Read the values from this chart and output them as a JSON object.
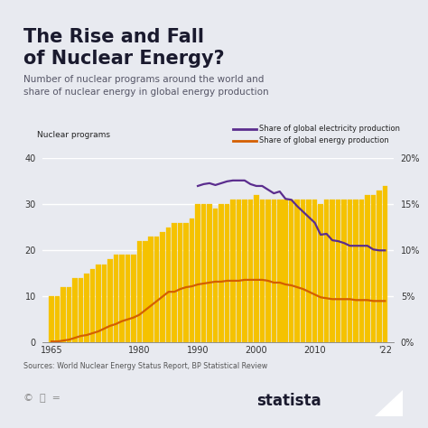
{
  "title_line1": "The Rise and Fall",
  "title_line2": "of Nuclear Energy?",
  "subtitle": "Number of nuclear programs around the world and\nshare of nuclear energy in global energy production",
  "source": "Sources: World Nuclear Energy Status Report, BP Statistical Review",
  "bar_color": "#F5C200",
  "line1_color": "#5B2D8E",
  "line2_color": "#D45F00",
  "bg_color": "#E8EAF0",
  "years": [
    1965,
    1966,
    1967,
    1968,
    1969,
    1970,
    1971,
    1972,
    1973,
    1974,
    1975,
    1976,
    1977,
    1978,
    1979,
    1980,
    1981,
    1982,
    1983,
    1984,
    1985,
    1986,
    1987,
    1988,
    1989,
    1990,
    1991,
    1992,
    1993,
    1994,
    1995,
    1996,
    1997,
    1998,
    1999,
    2000,
    2001,
    2002,
    2003,
    2004,
    2005,
    2006,
    2007,
    2008,
    2009,
    2010,
    2011,
    2012,
    2013,
    2014,
    2015,
    2016,
    2017,
    2018,
    2019,
    2020,
    2021,
    2022
  ],
  "nuclear_programs": [
    10,
    10,
    12,
    12,
    14,
    14,
    15,
    16,
    17,
    17,
    18,
    19,
    19,
    19,
    19,
    22,
    22,
    23,
    23,
    24,
    25,
    26,
    26,
    26,
    27,
    30,
    30,
    30,
    29,
    30,
    30,
    31,
    31,
    31,
    31,
    32,
    31,
    31,
    31,
    31,
    31,
    31,
    31,
    31,
    31,
    31,
    30,
    31,
    31,
    31,
    31,
    31,
    31,
    31,
    32,
    32,
    33,
    34
  ],
  "share_electricity": [
    null,
    null,
    null,
    null,
    null,
    null,
    null,
    null,
    null,
    null,
    null,
    null,
    null,
    null,
    null,
    null,
    null,
    null,
    null,
    null,
    null,
    null,
    null,
    null,
    null,
    17.0,
    17.2,
    17.3,
    17.1,
    17.3,
    17.5,
    17.6,
    17.6,
    17.6,
    17.2,
    17.0,
    17.0,
    16.6,
    16.2,
    16.4,
    15.6,
    15.5,
    14.8,
    14.2,
    13.6,
    13.0,
    11.7,
    11.8,
    11.1,
    11.0,
    10.8,
    10.5,
    10.5,
    10.5,
    10.5,
    10.1,
    10.0,
    10.0
  ],
  "share_energy": [
    0.1,
    0.1,
    0.2,
    0.3,
    0.5,
    0.7,
    0.8,
    1.0,
    1.2,
    1.5,
    1.8,
    2.0,
    2.3,
    2.5,
    2.7,
    3.0,
    3.5,
    4.0,
    4.5,
    5.0,
    5.5,
    5.5,
    5.8,
    6.0,
    6.1,
    6.3,
    6.4,
    6.5,
    6.6,
    6.6,
    6.7,
    6.7,
    6.7,
    6.8,
    6.8,
    6.8,
    6.8,
    6.7,
    6.5,
    6.5,
    6.3,
    6.2,
    6.0,
    5.8,
    5.5,
    5.2,
    4.9,
    4.8,
    4.7,
    4.7,
    4.7,
    4.7,
    4.6,
    4.6,
    4.6,
    4.5,
    4.5,
    4.5
  ],
  "ylim_left": [
    0,
    40
  ],
  "ylim_right": [
    0,
    0.2
  ],
  "yticks_left": [
    0,
    10,
    20,
    30,
    40
  ],
  "yticks_right": [
    0.0,
    0.05,
    0.1,
    0.15,
    0.2
  ],
  "ytick_labels_right": [
    "0%",
    "5%",
    "10%",
    "15%",
    "20%"
  ],
  "legend_bar": "Nuclear programs",
  "legend_line1": "Share of global electricity production",
  "legend_line2": "Share of global energy production",
  "title_color": "#1a1a2e",
  "subtitle_color": "#555566",
  "accent_bar_color": "#F5C200"
}
